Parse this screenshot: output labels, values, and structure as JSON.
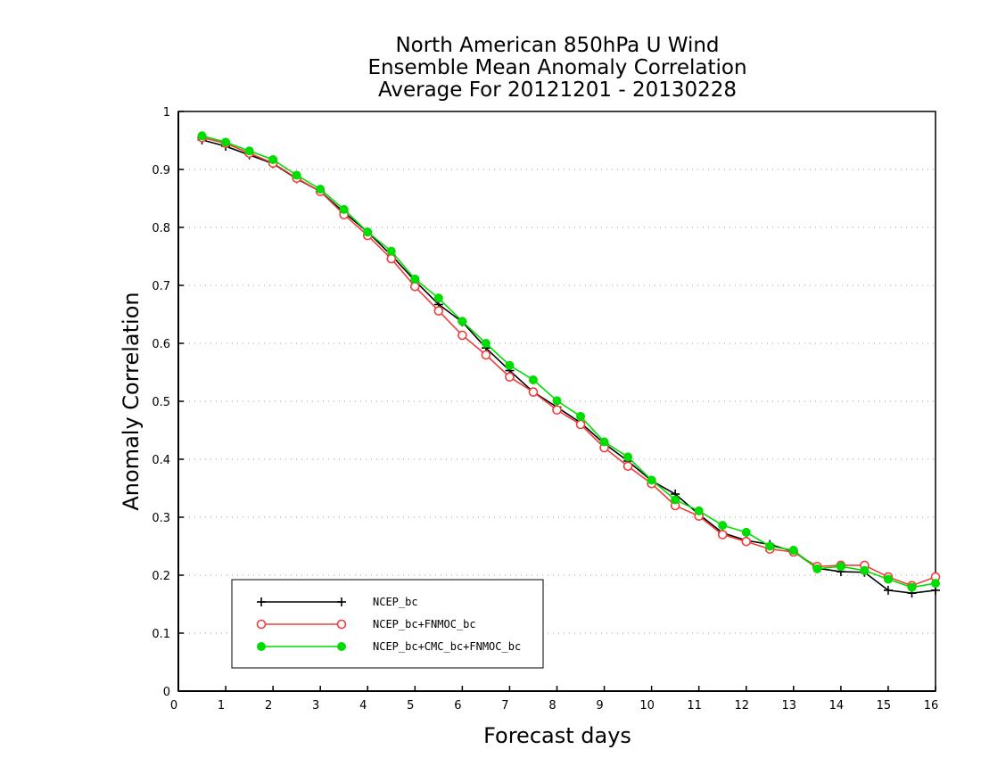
{
  "chart_data": {
    "type": "line",
    "title": [
      "North American 850hPa U Wind",
      "Ensemble Mean Anomaly Correlation",
      "Average For 20121201 - 20130228"
    ],
    "xlabel": "Forecast days",
    "ylabel": "Anomaly Correlation",
    "xlim": [
      0,
      16
    ],
    "ylim": [
      0,
      1
    ],
    "xticks": [
      "0",
      "1",
      "2",
      "3",
      "4",
      "5",
      "6",
      "7",
      "8",
      "9",
      "10",
      "11",
      "12",
      "13",
      "14",
      "15",
      "16"
    ],
    "yticks": [
      "0",
      "0.1",
      "0.2",
      "0.3",
      "0.4",
      "0.5",
      "0.6",
      "0.7",
      "0.8",
      "0.9",
      "1"
    ],
    "grid": true,
    "legend_position": "bottom-left",
    "x": [
      0.5,
      1,
      1.5,
      2,
      2.5,
      3,
      3.5,
      4,
      4.5,
      5,
      5.5,
      6,
      6.5,
      7,
      7.5,
      8,
      8.5,
      9,
      9.5,
      10,
      10.5,
      11,
      11.5,
      12,
      12.5,
      13,
      13.5,
      14,
      14.5,
      15,
      15.5,
      16
    ],
    "series": [
      {
        "name": "NCEP_bc",
        "color": "#000000",
        "marker": "plus",
        "values": [
          0.951,
          0.94,
          0.925,
          0.91,
          0.884,
          0.862,
          0.826,
          0.792,
          0.752,
          0.708,
          0.667,
          0.637,
          0.592,
          0.553,
          0.516,
          0.49,
          0.463,
          0.427,
          0.397,
          0.363,
          0.34,
          0.305,
          0.273,
          0.26,
          0.253,
          0.241,
          0.212,
          0.206,
          0.205,
          0.174,
          0.169,
          0.174
        ]
      },
      {
        "name": "NCEP_bc+FNMOC_bc",
        "color": "#f03c3c",
        "marker": "open-circle",
        "values": [
          0.955,
          0.945,
          0.928,
          0.911,
          0.885,
          0.862,
          0.822,
          0.786,
          0.746,
          0.698,
          0.656,
          0.614,
          0.58,
          0.542,
          0.516,
          0.485,
          0.46,
          0.42,
          0.388,
          0.358,
          0.32,
          0.302,
          0.27,
          0.258,
          0.245,
          0.24,
          0.215,
          0.217,
          0.217,
          0.197,
          0.182,
          0.197
        ]
      },
      {
        "name": "NCEP_bc+CMC_bc+FNMOC_bc",
        "color": "#00dd00",
        "marker": "filled-circle",
        "values": [
          0.958,
          0.947,
          0.932,
          0.917,
          0.89,
          0.866,
          0.831,
          0.792,
          0.759,
          0.711,
          0.678,
          0.638,
          0.6,
          0.562,
          0.537,
          0.501,
          0.474,
          0.43,
          0.404,
          0.364,
          0.33,
          0.311,
          0.286,
          0.274,
          0.25,
          0.243,
          0.211,
          0.215,
          0.208,
          0.193,
          0.179,
          0.186
        ]
      }
    ]
  }
}
